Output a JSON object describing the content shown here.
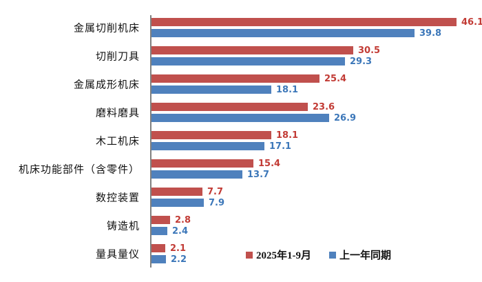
{
  "chart_data": {
    "type": "bar",
    "orientation": "horizontal",
    "title": "",
    "xlabel": "",
    "ylabel": "",
    "grid": false,
    "legend_position": "bottom",
    "value_axis_min": 0,
    "value_axis_max": 48,
    "categories": [
      "金属切削机床",
      "切削刀具",
      "金属成形机床",
      "磨料磨具",
      "木工机床",
      "机床功能部件（含零件）",
      "数控装置",
      "铸造机",
      "量具量仪"
    ],
    "series": [
      {
        "name": "2025年1-9月",
        "bar_color": "#C0504D",
        "label_color": "#C23B35",
        "values": [
          46.1,
          30.5,
          25.4,
          23.6,
          18.1,
          15.4,
          7.7,
          2.8,
          2.1
        ]
      },
      {
        "name": "上一年同期",
        "bar_color": "#4F81BD",
        "label_color": "#3C77B9",
        "values": [
          39.8,
          29.3,
          18.1,
          26.9,
          17.1,
          13.7,
          7.9,
          2.4,
          2.2
        ]
      }
    ],
    "colors": {
      "axis_line": "#7f7f7f",
      "category_text": "#111111",
      "background": "#ffffff"
    }
  }
}
